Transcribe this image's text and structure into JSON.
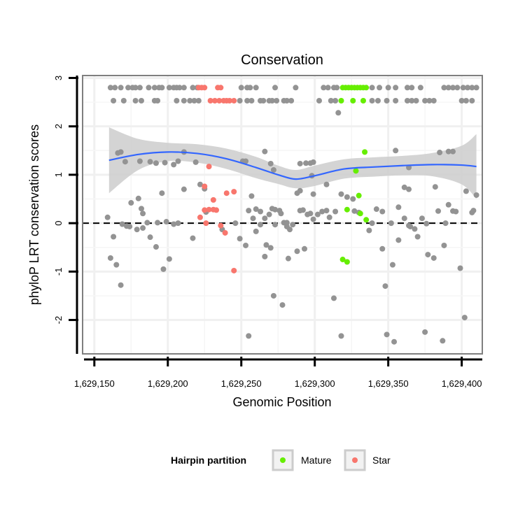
{
  "chart_data": {
    "type": "scatter",
    "title": "Conservation",
    "xlabel": "Genomic Position",
    "ylabel": "phyloP LRT conservation scores",
    "xlim": [
      1629142,
      1629414
    ],
    "ylim": [
      -2.7,
      3.05
    ],
    "x_ticks": [
      1629150,
      1629200,
      1629250,
      1629300,
      1629350,
      1629400
    ],
    "x_tick_labels": [
      "1,629,150",
      "1,629,200",
      "1,629,250",
      "1,629,300",
      "1,629,350",
      "1,629,400"
    ],
    "y_ticks": [
      -2,
      -1,
      0,
      1,
      2,
      3
    ],
    "y_tick_labels": [
      "-2",
      "-1",
      "0",
      "1",
      "2",
      "3"
    ],
    "reference_line": {
      "y": 0,
      "style": "dashed"
    },
    "legend": {
      "title": "Hairpin partition",
      "position": "bottom",
      "entries": [
        {
          "label": "Mature",
          "color": "#66ee00"
        },
        {
          "label": "Star",
          "color": "#f8766d"
        }
      ]
    },
    "colors": {
      "Other": "#939393",
      "Mature": "#66ee00",
      "Star": "#f8766d",
      "smooth": "#3366ff",
      "band": "#cccccc"
    },
    "smooth": {
      "x": [
        1629160,
        1629180,
        1629200,
        1629220,
        1629240,
        1629260,
        1629275,
        1629287,
        1629300,
        1629320,
        1629340,
        1629360,
        1629380,
        1629400,
        1629410
      ],
      "y": [
        1.3,
        1.42,
        1.47,
        1.44,
        1.33,
        1.15,
        1.0,
        0.91,
        0.98,
        1.12,
        1.16,
        1.19,
        1.21,
        1.2,
        1.17
      ],
      "upper": [
        1.98,
        1.74,
        1.66,
        1.63,
        1.54,
        1.37,
        1.19,
        1.1,
        1.19,
        1.32,
        1.36,
        1.39,
        1.45,
        1.6,
        1.84
      ],
      "lower": [
        0.62,
        1.1,
        1.28,
        1.25,
        1.12,
        0.93,
        0.81,
        0.72,
        0.77,
        0.92,
        0.96,
        0.99,
        0.97,
        0.8,
        0.5
      ]
    },
    "series": [
      {
        "name": "Other",
        "points": [
          [
            1629161,
            2.8
          ],
          [
            1629164,
            2.8
          ],
          [
            1629168,
            2.8
          ],
          [
            1629173,
            2.8
          ],
          [
            1629176,
            2.8
          ],
          [
            1629178,
            2.8
          ],
          [
            1629181,
            2.8
          ],
          [
            1629187,
            2.8
          ],
          [
            1629191,
            2.8
          ],
          [
            1629194,
            2.8
          ],
          [
            1629196,
            2.8
          ],
          [
            1629201,
            2.8
          ],
          [
            1629204,
            2.8
          ],
          [
            1629206,
            2.8
          ],
          [
            1629208,
            2.8
          ],
          [
            1629211,
            2.8
          ],
          [
            1629217,
            2.8
          ],
          [
            1629220,
            2.8
          ],
          [
            1629250,
            2.8
          ],
          [
            1629254,
            2.8
          ],
          [
            1629256,
            2.8
          ],
          [
            1629260,
            2.8
          ],
          [
            1629273,
            2.8
          ],
          [
            1629287,
            2.8
          ],
          [
            1629306,
            2.8
          ],
          [
            1629309,
            2.8
          ],
          [
            1629313,
            2.8
          ],
          [
            1629315,
            2.8
          ],
          [
            1629339,
            2.8
          ],
          [
            1629344,
            2.8
          ],
          [
            1629350,
            2.8
          ],
          [
            1629355,
            2.8
          ],
          [
            1629363,
            2.8
          ],
          [
            1629366,
            2.8
          ],
          [
            1629372,
            2.8
          ],
          [
            1629388,
            2.8
          ],
          [
            1629391,
            2.8
          ],
          [
            1629394,
            2.8
          ],
          [
            1629397,
            2.8
          ],
          [
            1629401,
            2.8
          ],
          [
            1629404,
            2.8
          ],
          [
            1629407,
            2.8
          ],
          [
            1629410,
            2.8
          ],
          [
            1629163,
            2.53
          ],
          [
            1629170,
            2.53
          ],
          [
            1629178,
            2.53
          ],
          [
            1629182,
            2.53
          ],
          [
            1629191,
            2.53
          ],
          [
            1629193,
            2.53
          ],
          [
            1629206,
            2.53
          ],
          [
            1629211,
            2.53
          ],
          [
            1629215,
            2.53
          ],
          [
            1629218,
            2.53
          ],
          [
            1629221,
            2.53
          ],
          [
            1629249,
            2.53
          ],
          [
            1629254,
            2.53
          ],
          [
            1629257,
            2.53
          ],
          [
            1629263,
            2.53
          ],
          [
            1629265,
            2.53
          ],
          [
            1629269,
            2.53
          ],
          [
            1629271,
            2.53
          ],
          [
            1629274,
            2.53
          ],
          [
            1629279,
            2.53
          ],
          [
            1629281,
            2.53
          ],
          [
            1629284,
            2.53
          ],
          [
            1629303,
            2.53
          ],
          [
            1629311,
            2.53
          ],
          [
            1629314,
            2.53
          ],
          [
            1629339,
            2.53
          ],
          [
            1629343,
            2.53
          ],
          [
            1629349,
            2.53
          ],
          [
            1629355,
            2.53
          ],
          [
            1629363,
            2.53
          ],
          [
            1629366,
            2.53
          ],
          [
            1629369,
            2.53
          ],
          [
            1629375,
            2.53
          ],
          [
            1629378,
            2.53
          ],
          [
            1629381,
            2.53
          ],
          [
            1629400,
            2.53
          ],
          [
            1629403,
            2.53
          ],
          [
            1629407,
            2.53
          ],
          [
            1629316,
            2.28
          ],
          [
            1629166,
            1.45
          ],
          [
            1629168,
            1.47
          ],
          [
            1629171,
            1.27
          ],
          [
            1629181,
            1.28
          ],
          [
            1629188,
            1.27
          ],
          [
            1629192,
            1.24
          ],
          [
            1629198,
            1.25
          ],
          [
            1629204,
            1.21
          ],
          [
            1629207,
            1.28
          ],
          [
            1629211,
            1.47
          ],
          [
            1629219,
            1.26
          ],
          [
            1629251,
            1.28
          ],
          [
            1629253,
            1.28
          ],
          [
            1629266,
            1.48
          ],
          [
            1629270,
            1.23
          ],
          [
            1629290,
            1.23
          ],
          [
            1629294,
            1.24
          ],
          [
            1629297,
            1.24
          ],
          [
            1629299,
            1.26
          ],
          [
            1629355,
            1.5
          ],
          [
            1629364,
            1.15
          ],
          [
            1629385,
            1.46
          ],
          [
            1629391,
            1.48
          ],
          [
            1629394,
            1.48
          ],
          [
            1629272,
            1.1
          ],
          [
            1629298,
            0.98
          ],
          [
            1629308,
            0.8
          ],
          [
            1629318,
            0.6
          ],
          [
            1629288,
            0.62
          ],
          [
            1629290,
            0.67
          ],
          [
            1629299,
            0.6
          ],
          [
            1629322,
            0.54
          ],
          [
            1629326,
            0.5
          ],
          [
            1629257,
            0.56
          ],
          [
            1629364,
            0.7
          ],
          [
            1629361,
            0.74
          ],
          [
            1629382,
            0.75
          ],
          [
            1629403,
            0.66
          ],
          [
            1629410,
            0.58
          ],
          [
            1629196,
            0.62
          ],
          [
            1629180,
            0.51
          ],
          [
            1629211,
            0.7
          ],
          [
            1629175,
            0.42
          ],
          [
            1629182,
            0.3
          ],
          [
            1629183,
            0.2
          ],
          [
            1629186,
            0.01
          ],
          [
            1629193,
            0.01
          ],
          [
            1629199,
            0.03
          ],
          [
            1629207,
            0.0
          ],
          [
            1629159,
            0.12
          ],
          [
            1629225,
            0.71
          ],
          [
            1629222,
            0.8
          ],
          [
            1629226,
            0.23
          ],
          [
            1629246,
            0.0
          ],
          [
            1629255,
            0.26
          ],
          [
            1629258,
            0.1
          ],
          [
            1629260,
            0.29
          ],
          [
            1629263,
            0.24
          ],
          [
            1629266,
            0.1
          ],
          [
            1629269,
            0.18
          ],
          [
            1629271,
            0.3
          ],
          [
            1629273,
            0.28
          ],
          [
            1629276,
            0.26
          ],
          [
            1629277,
            0.2
          ],
          [
            1629279,
            0.01
          ],
          [
            1629281,
            0.01
          ],
          [
            1629290,
            0.26
          ],
          [
            1629292,
            0.27
          ],
          [
            1629295,
            0.18
          ],
          [
            1629297,
            0.2
          ],
          [
            1629299,
            0.08
          ],
          [
            1629302,
            0.18
          ],
          [
            1629305,
            0.24
          ],
          [
            1629308,
            0.26
          ],
          [
            1629310,
            0.12
          ],
          [
            1629314,
            0.24
          ],
          [
            1629327,
            0.25
          ],
          [
            1629330,
            0.22
          ],
          [
            1629339,
            0.0
          ],
          [
            1629342,
            0.29
          ],
          [
            1629346,
            0.24
          ],
          [
            1629352,
            0.0
          ],
          [
            1629357,
            0.33
          ],
          [
            1629361,
            0.1
          ],
          [
            1629365,
            -0.07
          ],
          [
            1629368,
            -0.12
          ],
          [
            1629373,
            0.1
          ],
          [
            1629376,
            -0.01
          ],
          [
            1629384,
            0.25
          ],
          [
            1629389,
            0.0
          ],
          [
            1629391,
            0.38
          ],
          [
            1629394,
            0.25
          ],
          [
            1629396,
            0.24
          ],
          [
            1629407,
            0.22
          ],
          [
            1629408,
            0.26
          ],
          [
            1629163,
            -0.28
          ],
          [
            1629169,
            -0.02
          ],
          [
            1629172,
            -0.06
          ],
          [
            1629174,
            -0.07
          ],
          [
            1629179,
            -0.13
          ],
          [
            1629183,
            -0.1
          ],
          [
            1629188,
            -0.29
          ],
          [
            1629192,
            -0.49
          ],
          [
            1629204,
            -0.02
          ],
          [
            1629217,
            -0.31
          ],
          [
            1629237,
            -0.13
          ],
          [
            1629249,
            -0.32
          ],
          [
            1629253,
            -0.46
          ],
          [
            1629260,
            -0.17
          ],
          [
            1629263,
            -0.03
          ],
          [
            1629267,
            -0.45
          ],
          [
            1629270,
            -0.51
          ],
          [
            1629273,
            -0.03
          ],
          [
            1629281,
            -0.07
          ],
          [
            1629283,
            -0.13
          ],
          [
            1629285,
            -0.03
          ],
          [
            1629288,
            -0.58
          ],
          [
            1629293,
            -0.53
          ],
          [
            1629337,
            -0.15
          ],
          [
            1629346,
            -0.53
          ],
          [
            1629357,
            -0.35
          ],
          [
            1629364,
            -0.05
          ],
          [
            1629370,
            -0.28
          ],
          [
            1629377,
            -0.65
          ],
          [
            1629388,
            -0.46
          ],
          [
            1629161,
            -0.72
          ],
          [
            1629165,
            -0.86
          ],
          [
            1629168,
            -1.28
          ],
          [
            1629197,
            -0.95
          ],
          [
            1629201,
            -0.74
          ],
          [
            1629266,
            -0.69
          ],
          [
            1629282,
            -0.73
          ],
          [
            1629353,
            -0.86
          ],
          [
            1629381,
            -0.72
          ],
          [
            1629399,
            -0.93
          ],
          [
            1629272,
            -1.5
          ],
          [
            1629278,
            -1.69
          ],
          [
            1629313,
            -1.55
          ],
          [
            1629348,
            -1.3
          ],
          [
            1629255,
            -2.33
          ],
          [
            1629318,
            -2.33
          ],
          [
            1629349,
            -2.3
          ],
          [
            1629354,
            -2.45
          ],
          [
            1629375,
            -2.25
          ],
          [
            1629387,
            -2.43
          ],
          [
            1629402,
            -1.95
          ]
        ]
      },
      {
        "name": "Mature",
        "points": [
          [
            1629319,
            2.8
          ],
          [
            1629321,
            2.8
          ],
          [
            1629323,
            2.8
          ],
          [
            1629325,
            2.8
          ],
          [
            1629327,
            2.8
          ],
          [
            1629329,
            2.8
          ],
          [
            1629331,
            2.8
          ],
          [
            1629333,
            2.8
          ],
          [
            1629335,
            2.8
          ],
          [
            1629318,
            2.53
          ],
          [
            1629326,
            2.53
          ],
          [
            1629333,
            2.53
          ],
          [
            1629334,
            1.47
          ],
          [
            1629328,
            1.08
          ],
          [
            1629330,
            0.57
          ],
          [
            1629322,
            0.28
          ],
          [
            1629331,
            0.2
          ],
          [
            1629335,
            0.07
          ],
          [
            1629319,
            -0.75
          ],
          [
            1629322,
            -0.8
          ]
        ]
      },
      {
        "name": "Star",
        "points": [
          [
            1629221,
            2.8
          ],
          [
            1629223,
            2.8
          ],
          [
            1629225,
            2.8
          ],
          [
            1629234,
            2.8
          ],
          [
            1629236,
            2.8
          ],
          [
            1629229,
            2.53
          ],
          [
            1629232,
            2.53
          ],
          [
            1629235,
            2.53
          ],
          [
            1629238,
            2.53
          ],
          [
            1629240,
            2.53
          ],
          [
            1629242,
            2.53
          ],
          [
            1629245,
            2.53
          ],
          [
            1629228,
            1.17
          ],
          [
            1629225,
            0.76
          ],
          [
            1629240,
            0.62
          ],
          [
            1629245,
            0.65
          ],
          [
            1629231,
            0.48
          ],
          [
            1629225,
            0.27
          ],
          [
            1629228,
            0.28
          ],
          [
            1629231,
            0.28
          ],
          [
            1629233,
            0.27
          ],
          [
            1629222,
            0.12
          ],
          [
            1629226,
            0.0
          ],
          [
            1629236,
            -0.05
          ],
          [
            1629239,
            -0.2
          ],
          [
            1629245,
            -0.98
          ]
        ]
      }
    ]
  }
}
